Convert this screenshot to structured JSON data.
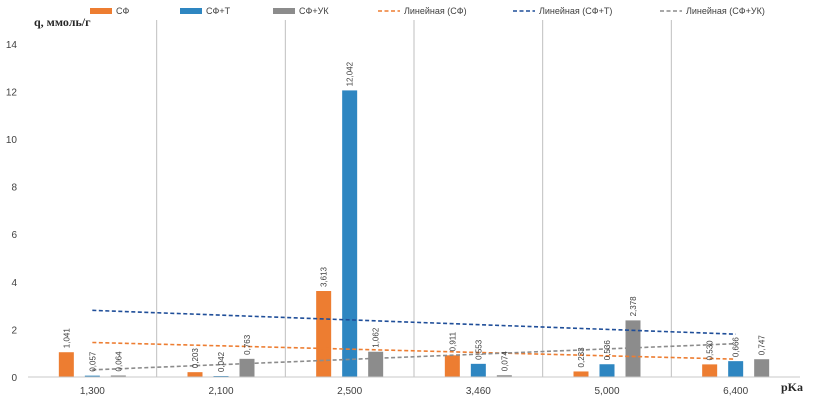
{
  "chart_data": {
    "type": "bar",
    "categories": [
      "1,300",
      "2,100",
      "2,500",
      "3,460",
      "5,000",
      "6,400"
    ],
    "series": [
      {
        "name": "СФ",
        "color": "#ED7D31",
        "values": [
          1.041,
          0.203,
          3.613,
          0.911,
          0.233,
          0.53
        ]
      },
      {
        "name": "СФ+Т",
        "color": "#2E86C1",
        "values": [
          0.057,
          0.042,
          12.042,
          0.553,
          0.536,
          0.666
        ]
      },
      {
        "name": "СФ+УК",
        "color": "#8C8C8C",
        "values": [
          0.064,
          0.763,
          1.062,
          0.074,
          2.378,
          0.747
        ]
      }
    ],
    "data_labels": [
      [
        "1,041",
        "0,203",
        "3,613",
        "0,911",
        "0,233",
        "0,530"
      ],
      [
        "0,057",
        "0,042",
        "12,042",
        "0,553",
        "0,536",
        "0,666"
      ],
      [
        "0,064",
        "0,763",
        "1,062",
        "0,074",
        "2,378",
        "0,747"
      ]
    ],
    "trendlines": [
      {
        "name": "Линейная (СФ)",
        "color": "#ED7D31",
        "start": 1.45,
        "end": 0.75
      },
      {
        "name": "Линейная (СФ+Т)",
        "color": "#1F4E99",
        "start": 2.8,
        "end": 1.8
      },
      {
        "name": "Линейная (СФ+УК)",
        "color": "#8C8C8C",
        "start": 0.3,
        "end": 1.4
      }
    ],
    "ylabel": "q, ммоль/г",
    "xlabel": "pKa",
    "ylim": [
      0,
      15
    ],
    "yticks": [
      "0",
      "2",
      "4",
      "6",
      "8",
      "10",
      "12",
      "14"
    ],
    "grid": "vertical",
    "legend_position": "top"
  }
}
